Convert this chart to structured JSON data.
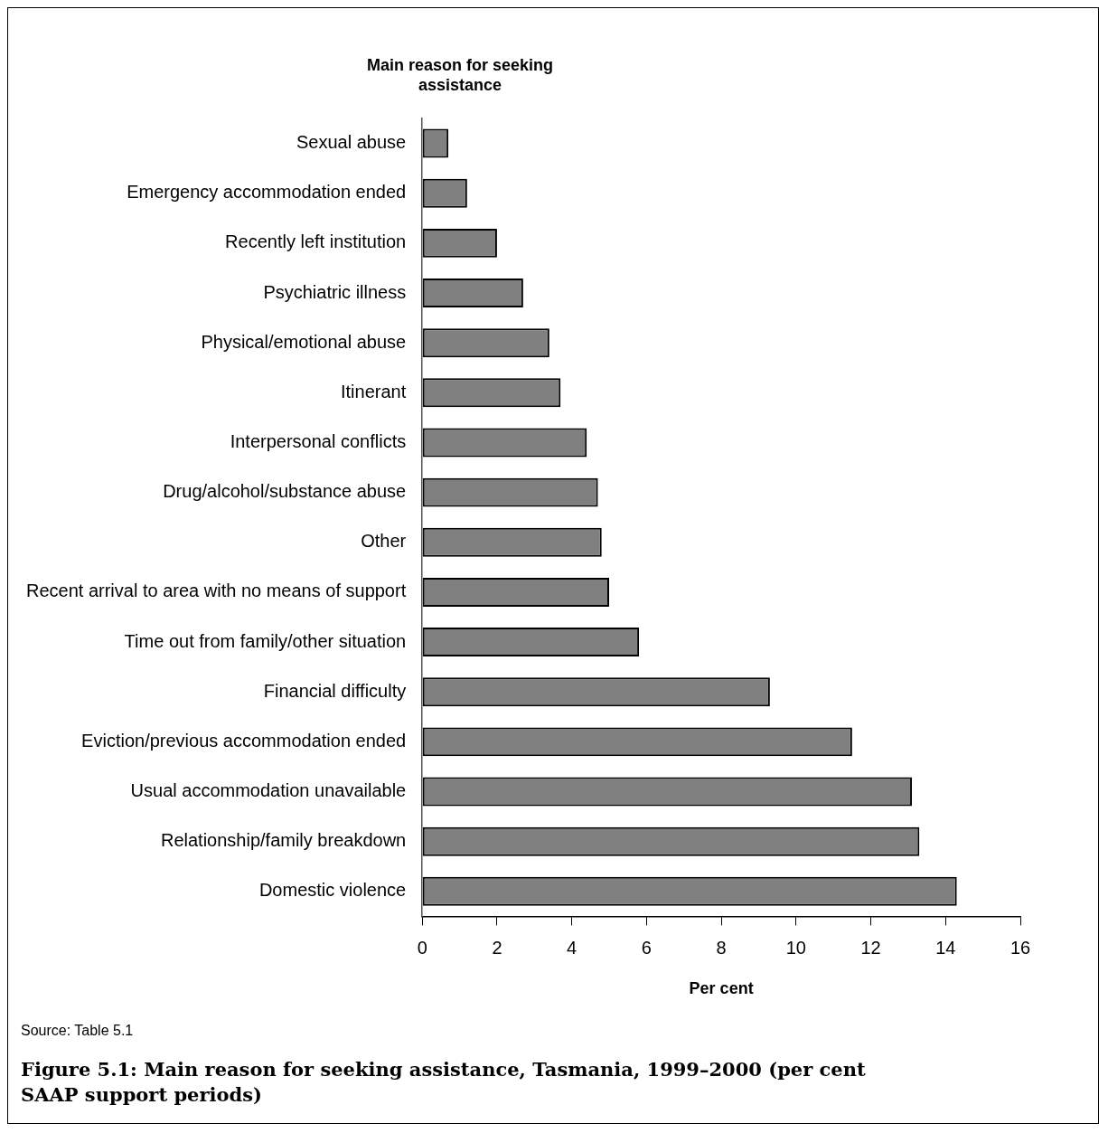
{
  "chart_data": {
    "type": "bar",
    "orientation": "horizontal",
    "title": "Figure 5.1: Main reason for seeking assistance, Tasmania, 1999–2000 (per cent SAAP support periods)",
    "ylabel": "Main reason for seeking assistance",
    "xlabel": "Per cent",
    "categories": [
      "Sexual abuse",
      "Emergency accommodation ended",
      "Recently left institution",
      "Psychiatric illness",
      "Physical/emotional abuse",
      "Itinerant",
      "Interpersonal conflicts",
      "Drug/alcohol/substance abuse",
      "Other",
      "Recent arrival to area with no means of support",
      "Time out from family/other situation",
      "Financial difficulty",
      "Eviction/previous accommodation ended",
      "Usual accommodation unavailable",
      "Relationship/family breakdown",
      "Domestic violence"
    ],
    "values": [
      0.7,
      1.2,
      2.0,
      2.7,
      3.4,
      3.7,
      4.4,
      4.7,
      4.8,
      5.0,
      5.8,
      9.3,
      11.5,
      13.1,
      13.3,
      14.3
    ],
    "color": "#808080",
    "xlim": [
      0,
      16
    ],
    "xticks": [
      0,
      2,
      4,
      6,
      8,
      10,
      12,
      14,
      16
    ],
    "annotations": [
      "Source: Table 5.1"
    ]
  }
}
